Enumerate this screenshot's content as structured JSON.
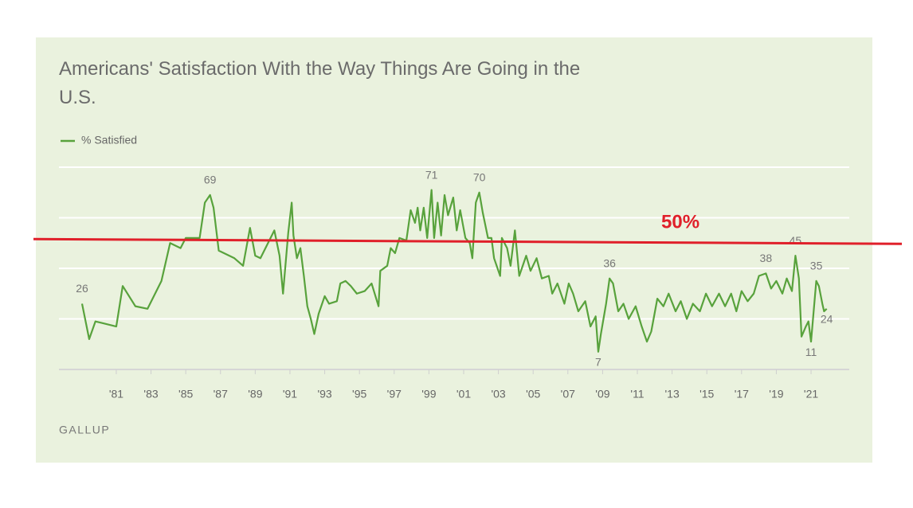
{
  "chart_data": {
    "type": "line",
    "title": "Americans' Satisfaction With the Way Things Are Going in the U.S.",
    "source": "GALLUP",
    "xlim": [
      1977.7,
      2023.2
    ],
    "xticks": [
      {
        "value": 1981,
        "label": "'81"
      },
      {
        "value": 1983,
        "label": "'83"
      },
      {
        "value": 1985,
        "label": "'85"
      },
      {
        "value": 1987,
        "label": "'87"
      },
      {
        "value": 1989,
        "label": "'89"
      },
      {
        "value": 1991,
        "label": "'91"
      },
      {
        "value": 1993,
        "label": "'93"
      },
      {
        "value": 1995,
        "label": "'95"
      },
      {
        "value": 1997,
        "label": "'97"
      },
      {
        "value": 1999,
        "label": "'99"
      },
      {
        "value": 2001,
        "label": "'01"
      },
      {
        "value": 2003,
        "label": "'03"
      },
      {
        "value": 2005,
        "label": "'05"
      },
      {
        "value": 2007,
        "label": "'07"
      },
      {
        "value": 2009,
        "label": "'09"
      },
      {
        "value": 2011,
        "label": "'11"
      },
      {
        "value": 2013,
        "label": "'13"
      },
      {
        "value": 2015,
        "label": "'15"
      },
      {
        "value": 2017,
        "label": "'17"
      },
      {
        "value": 2019,
        "label": "'19"
      },
      {
        "value": 2021,
        "label": "'21"
      }
    ],
    "ylim": [
      0,
      80
    ],
    "yticks": [
      0,
      20,
      40,
      60,
      80
    ],
    "grid": true,
    "legend": "top-left",
    "reference_line": {
      "value": 50,
      "label": "50%",
      "color": "#e0202a"
    },
    "x": [
      1979.03,
      1979.44,
      1979.8,
      1981.0,
      1981.37,
      1982.1,
      1982.8,
      1983.6,
      1984.1,
      1984.7,
      1985.0,
      1985.4,
      1985.8,
      1986.1,
      1986.4,
      1986.6,
      1986.9,
      1987.8,
      1988.3,
      1988.7,
      1989.0,
      1989.3,
      1990.1,
      1990.4,
      1990.6,
      1990.9,
      1991.1,
      1991.2,
      1991.4,
      1991.6,
      1991.8,
      1992.0,
      1992.2,
      1992.4,
      1992.65,
      1993.0,
      1993.25,
      1993.7,
      1993.9,
      1994.2,
      1994.5,
      1994.85,
      1995.3,
      1995.7,
      1996.1,
      1996.2,
      1996.6,
      1996.8,
      1997.05,
      1997.3,
      1997.7,
      1997.95,
      1998.2,
      1998.35,
      1998.5,
      1998.7,
      1998.9,
      1999.15,
      1999.3,
      1999.5,
      1999.7,
      1999.9,
      2000.1,
      2000.4,
      2000.6,
      2000.8,
      2001.1,
      2001.35,
      2001.5,
      2001.7,
      2001.9,
      2002.1,
      2002.4,
      2002.6,
      2002.75,
      2003.1,
      2003.2,
      2003.5,
      2003.7,
      2003.95,
      2004.2,
      2004.6,
      2004.85,
      2005.2,
      2005.5,
      2005.9,
      2006.1,
      2006.4,
      2006.8,
      2007.05,
      2007.3,
      2007.6,
      2008.0,
      2008.3,
      2008.6,
      2008.75,
      2008.9,
      2009.2,
      2009.4,
      2009.6,
      2009.9,
      2010.2,
      2010.5,
      2010.9,
      2011.25,
      2011.55,
      2011.8,
      2012.15,
      2012.5,
      2012.8,
      2013.2,
      2013.5,
      2013.85,
      2014.2,
      2014.6,
      2014.95,
      2015.3,
      2015.7,
      2016.05,
      2016.4,
      2016.7,
      2017.0,
      2017.35,
      2017.7,
      2018.0,
      2018.4,
      2018.7,
      2019.0,
      2019.35,
      2019.6,
      2019.9,
      2020.1,
      2020.3,
      2020.45,
      2020.7,
      2020.85,
      2021.0,
      2021.3,
      2021.45,
      2021.65,
      2021.75,
      2021.9
    ],
    "series": [
      {
        "name": "% Satisfied",
        "color": "#58a23c",
        "values": [
          26,
          12,
          19,
          17,
          33,
          25,
          24,
          35,
          50,
          48,
          52,
          52,
          52,
          66,
          69,
          64,
          47,
          44,
          41,
          56,
          45,
          44,
          55,
          45,
          30,
          54,
          66,
          53,
          44,
          48,
          37,
          25,
          20,
          14,
          22,
          29,
          26,
          27,
          34,
          35,
          33,
          30,
          31,
          34,
          25,
          39,
          41,
          48,
          46,
          52,
          51,
          63,
          58,
          64,
          55,
          64,
          52,
          71,
          52,
          66,
          53,
          69,
          61,
          68,
          55,
          63,
          52,
          50,
          44,
          66,
          70,
          62,
          52,
          52,
          44,
          37,
          52,
          48,
          41,
          55,
          37,
          45,
          39,
          44,
          36,
          37,
          30,
          34,
          26,
          34,
          30,
          23,
          27,
          17,
          21,
          7,
          14,
          26,
          36,
          34,
          23,
          26,
          20,
          25,
          17,
          11,
          15,
          28,
          25,
          30,
          23,
          27,
          20,
          26,
          23,
          30,
          25,
          30,
          25,
          30,
          23,
          31,
          27,
          30,
          37,
          38,
          32,
          35,
          30,
          36,
          31,
          45,
          36,
          13,
          17,
          19,
          11,
          35,
          33,
          26,
          23,
          24
        ],
        "data_labels": [
          "above",
          null,
          null,
          null,
          null,
          null,
          null,
          null,
          null,
          null,
          null,
          null,
          null,
          null,
          "above",
          null,
          null,
          null,
          null,
          null,
          null,
          null,
          null,
          null,
          null,
          null,
          null,
          null,
          null,
          null,
          null,
          null,
          null,
          null,
          null,
          null,
          null,
          null,
          null,
          null,
          null,
          null,
          null,
          null,
          null,
          null,
          null,
          null,
          null,
          null,
          null,
          null,
          null,
          null,
          null,
          null,
          null,
          "above",
          null,
          null,
          null,
          null,
          null,
          null,
          null,
          null,
          null,
          null,
          null,
          null,
          "above",
          null,
          null,
          null,
          null,
          null,
          null,
          null,
          null,
          null,
          null,
          null,
          null,
          null,
          null,
          null,
          null,
          null,
          null,
          null,
          null,
          null,
          null,
          null,
          null,
          "below",
          null,
          null,
          "above",
          null,
          null,
          null,
          null,
          null,
          null,
          null,
          null,
          null,
          null,
          null,
          null,
          null,
          null,
          null,
          null,
          null,
          null,
          null,
          null,
          null,
          null,
          null,
          null,
          null,
          null,
          "above",
          null,
          null,
          null,
          null,
          null,
          "above",
          null,
          null,
          null,
          null,
          "below",
          "above",
          null,
          null,
          null,
          "below"
        ]
      }
    ]
  }
}
